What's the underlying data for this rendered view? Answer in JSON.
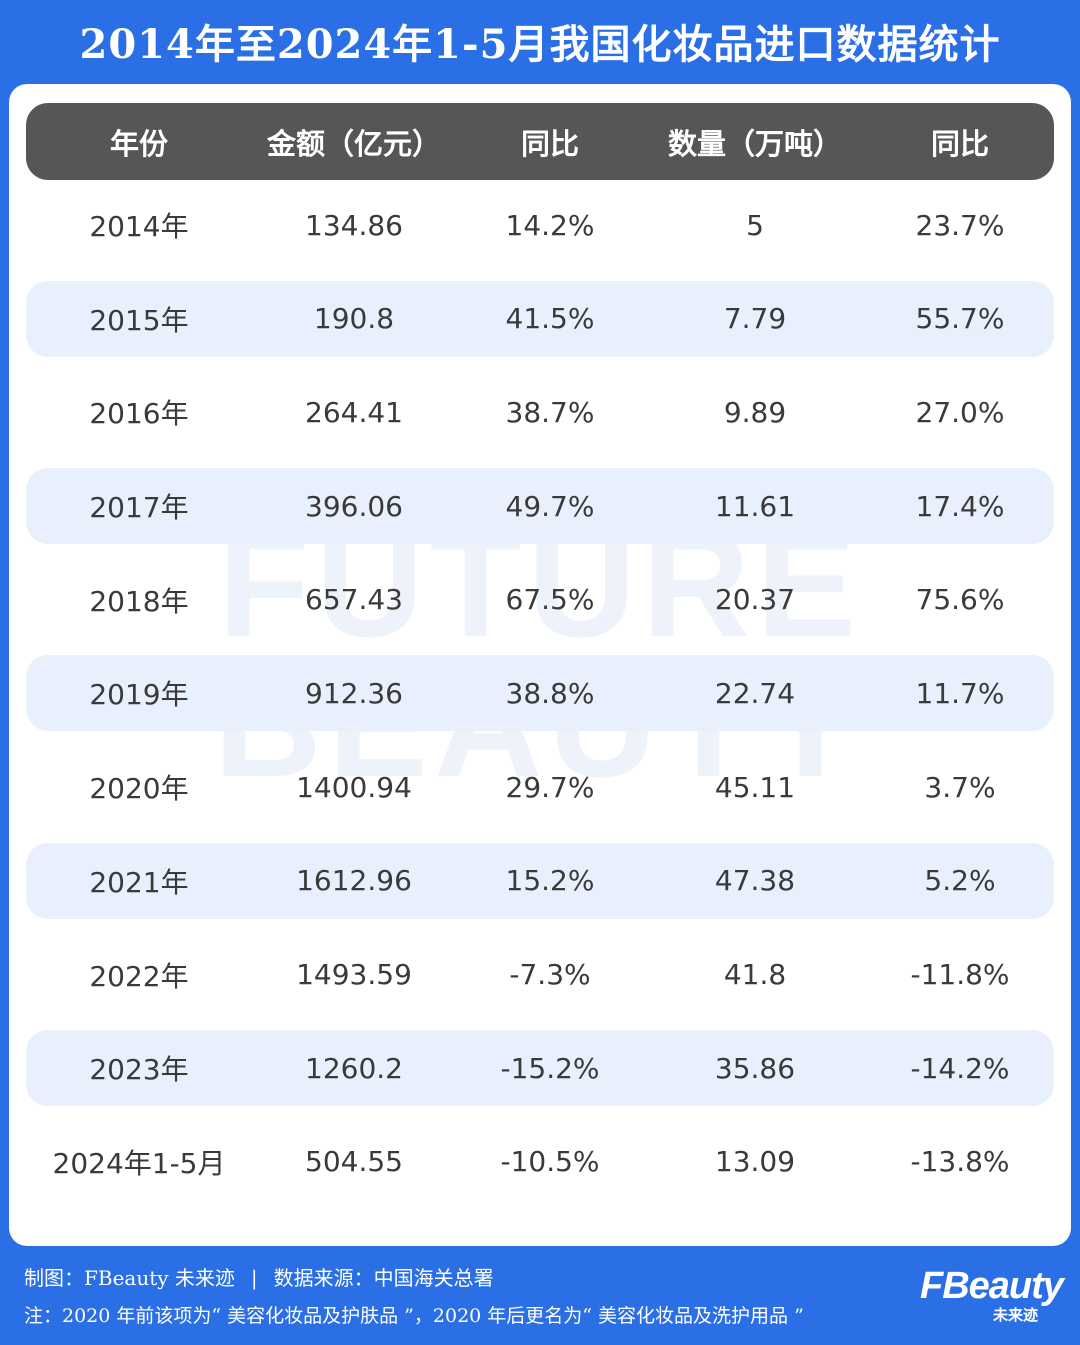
{
  "title": "2014年至2024年1-5月我国化妆品进口数据统计",
  "watermark": {
    "line1": "FUTURE",
    "line2": "BEAUTY"
  },
  "table": {
    "headers": [
      "年份",
      "金额（亿元）",
      "同比",
      "数量（万吨）",
      "同比"
    ],
    "rows": [
      [
        "2014年",
        "134.86",
        "14.2%",
        "5",
        "23.7%"
      ],
      [
        "2015年",
        "190.8",
        "41.5%",
        "7.79",
        "55.7%"
      ],
      [
        "2016年",
        "264.41",
        "38.7%",
        "9.89",
        "27.0%"
      ],
      [
        "2017年",
        "396.06",
        "49.7%",
        "11.61",
        "17.4%"
      ],
      [
        "2018年",
        "657.43",
        "67.5%",
        "20.37",
        "75.6%"
      ],
      [
        "2019年",
        "912.36",
        "38.8%",
        "22.74",
        "11.7%"
      ],
      [
        "2020年",
        "1400.94",
        "29.7%",
        "45.11",
        "3.7%"
      ],
      [
        "2021年",
        "1612.96",
        "15.2%",
        "47.38",
        "5.2%"
      ],
      [
        "2022年",
        "1493.59",
        "-7.3%",
        "41.8",
        "-11.8%"
      ],
      [
        "2023年",
        "1260.2",
        "-15.2%",
        "35.86",
        "-14.2%"
      ],
      [
        "2024年1-5月",
        "504.55",
        "-10.5%",
        "13.09",
        "-13.8%"
      ]
    ]
  },
  "footer": {
    "credit": "制图：FBeauty 未来迹",
    "separator": "|",
    "source": "数据来源：中国海关总署",
    "note": "注：2020 年前该项为“ 美容化妆品及护肤品 ”，2020 年后更名为“ 美容化妆品及洗护用品 ”"
  },
  "logo": {
    "brand": "FBeauty",
    "sub": "未来迹"
  },
  "colors": {
    "background": "#2b6fe6",
    "header": "#565656",
    "stripe": "#e9f0fd",
    "text": "#3a3a3a"
  }
}
